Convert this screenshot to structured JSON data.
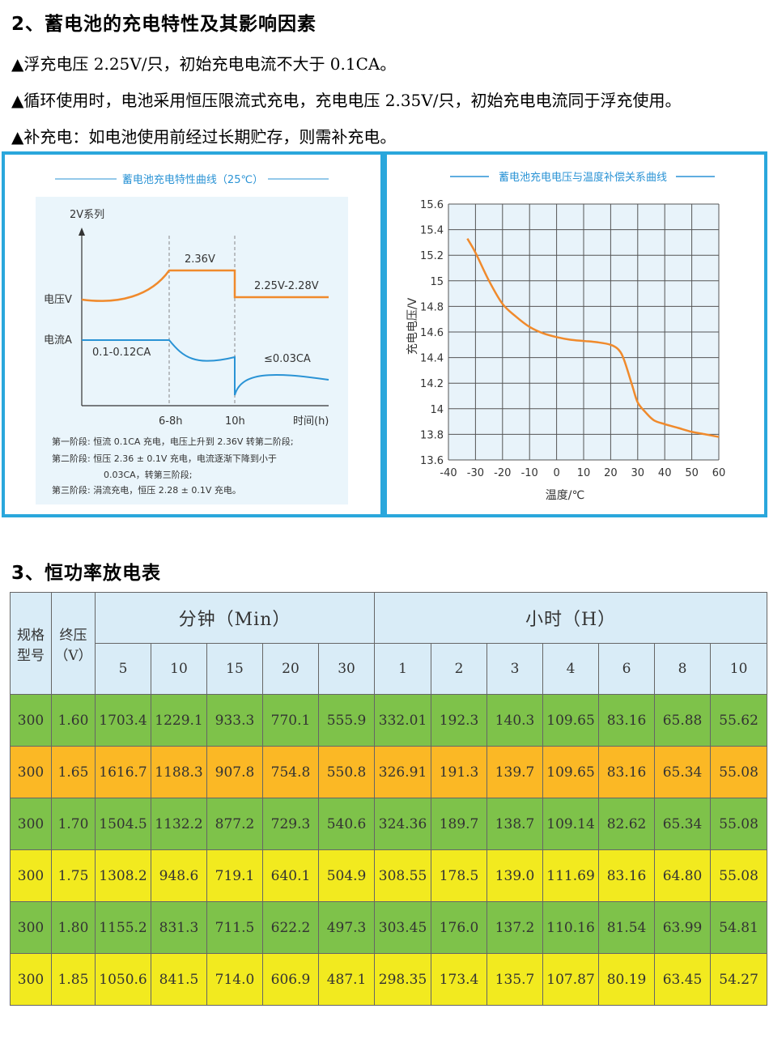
{
  "section2": {
    "title": "2、蓄电池的充电特性及其影响因素",
    "lines": [
      "▲浮充电压 2.25V/只，初始充电电流不大于 0.1CA。",
      "▲循环使用时，电池采用恒压限流式充电，充电电压 2.35V/只，初始充电电流同于浮充使用。",
      "▲补充电：如电池使用前经过长期贮存，则需补充电。"
    ]
  },
  "chart_left": {
    "title": "蓄电池充电特性曲线（25℃）",
    "series_label": "2V系列",
    "voltage_label": "电压V",
    "current_label": "电流A",
    "v_peak": "2.36V",
    "v_float": "2.25V-2.28V",
    "i_initial": "0.1-0.12CA",
    "i_final": "≤0.03CA",
    "x_ticks": [
      "6-8h",
      "10h"
    ],
    "x_label": "时间(h)",
    "notes": [
      "第一阶段:  恒流 0.1CA 充电，电压上升到 2.36V 转第二阶段;",
      "第二阶段:  恒压 2.36 ± 0.1V 充电，电流逐渐下降到小于",
      "0.03CA，转第三阶段;",
      "第三阶段:  涓流充电，恒压 2.28 ± 0.1V 充电。"
    ],
    "colors": {
      "voltage": "#f08a2c",
      "current": "#2a93d5"
    }
  },
  "chart_data": {
    "type": "line",
    "title": "蓄电池充电电压与温度补偿关系曲线",
    "xlabel": "温度/℃",
    "ylabel": "充电电压/V",
    "x_ticks": [
      -40,
      -30,
      -20,
      -10,
      0,
      10,
      20,
      30,
      40,
      50,
      60
    ],
    "y_ticks": [
      13.6,
      13.8,
      14.0,
      14.2,
      14.4,
      14.6,
      14.8,
      15.0,
      15.2,
      15.4,
      15.6
    ],
    "xlim": [
      -40,
      60
    ],
    "ylim": [
      13.6,
      15.6
    ],
    "grid": true,
    "color": "#f08a2c",
    "x": [
      -33,
      -30,
      -25,
      -20,
      -15,
      -10,
      -5,
      0,
      5,
      10,
      15,
      20,
      23,
      25,
      28,
      30,
      33,
      36,
      40,
      45,
      50,
      55,
      60
    ],
    "y": [
      15.33,
      15.22,
      15.0,
      14.82,
      14.72,
      14.64,
      14.59,
      14.56,
      14.54,
      14.53,
      14.52,
      14.5,
      14.46,
      14.38,
      14.18,
      14.05,
      13.97,
      13.91,
      13.88,
      13.85,
      13.82,
      13.8,
      13.78
    ]
  },
  "section3": {
    "title": "3、恒功率放电表",
    "head_model": [
      "规格",
      "型号"
    ],
    "head_voltage": [
      "终压",
      "（V）"
    ],
    "group_min": "分钟（Min）",
    "group_hour": "小时（H）",
    "cols_min": [
      "5",
      "10",
      "15",
      "20",
      "30"
    ],
    "cols_hour": [
      "1",
      "2",
      "3",
      "4",
      "6",
      "8",
      "10"
    ],
    "rows": [
      {
        "color": "green",
        "cells": [
          "300",
          "1.60",
          "1703.4",
          "1229.1",
          "933.3",
          "770.1",
          "555.9",
          "332.01",
          "192.3",
          "140.3",
          "109.65",
          "83.16",
          "65.88",
          "55.62"
        ]
      },
      {
        "color": "orange",
        "cells": [
          "300",
          "1.65",
          "1616.7",
          "1188.3",
          "907.8",
          "754.8",
          "550.8",
          "326.91",
          "191.3",
          "139.7",
          "109.65",
          "83.16",
          "65.34",
          "55.08"
        ]
      },
      {
        "color": "green",
        "cells": [
          "300",
          "1.70",
          "1504.5",
          "1132.2",
          "877.2",
          "729.3",
          "540.6",
          "324.36",
          "189.7",
          "138.7",
          "109.14",
          "82.62",
          "65.34",
          "55.08"
        ]
      },
      {
        "color": "yellow",
        "cells": [
          "300",
          "1.75",
          "1308.2",
          "948.6",
          "719.1",
          "640.1",
          "504.9",
          "308.55",
          "178.5",
          "139.0",
          "111.69",
          "83.16",
          "64.80",
          "55.08"
        ]
      },
      {
        "color": "green",
        "cells": [
          "300",
          "1.80",
          "1155.2",
          "831.3",
          "711.5",
          "622.2",
          "497.3",
          "303.45",
          "176.0",
          "137.2",
          "110.16",
          "81.54",
          "63.99",
          "54.81"
        ]
      },
      {
        "color": "yellow",
        "cells": [
          "300",
          "1.85",
          "1050.6",
          "841.5",
          "714.0",
          "606.9",
          "487.1",
          "298.35",
          "173.4",
          "135.7",
          "107.87",
          "80.19",
          "63.45",
          "54.27"
        ]
      }
    ]
  }
}
